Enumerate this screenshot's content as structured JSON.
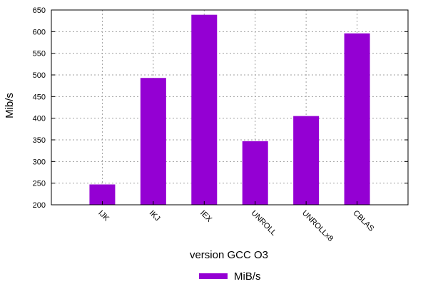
{
  "chart_data": {
    "type": "bar",
    "title": "",
    "xlabel": "version GCC O3",
    "ylabel": "Mib/s",
    "categories": [
      "IJK",
      "IKJ",
      "IEX",
      "UNROLL",
      "UNROLLx8",
      "CBLAS"
    ],
    "series": [
      {
        "name": "MiB/s",
        "values": [
          247,
          493,
          639,
          347,
          405,
          596
        ],
        "color": "#9400d3"
      }
    ],
    "ylim": [
      200,
      650
    ],
    "yticks": [
      200,
      250,
      300,
      350,
      400,
      450,
      500,
      550,
      600,
      650
    ],
    "grid": true,
    "legend": "bottom-center",
    "x_tick_rotation_deg": 45
  }
}
